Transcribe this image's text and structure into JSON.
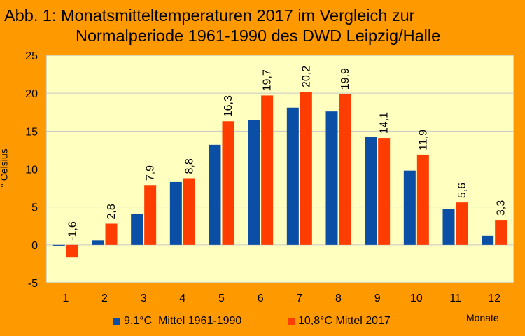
{
  "title_line1": "Abb. 1: Monatsmitteltemperaturen 2017 im Vergleich zur",
  "title_line2": "Normalperiode 1961-1990 des DWD Leipzig/Halle",
  "colors": {
    "series1": "#0a4ea6",
    "series2": "#ff3d00",
    "plot_bg": "#ffffc0",
    "page_bg": "#ff9900"
  },
  "chart_data": {
    "type": "bar",
    "title": "Abb. 1: Monatsmitteltemperaturen 2017 im Vergleich zur Normalperiode 1961-1990 des DWD Leipzig/Halle",
    "xlabel": "Monate",
    "ylabel": "° Celsius",
    "categories": [
      "1",
      "2",
      "3",
      "4",
      "5",
      "6",
      "7",
      "8",
      "9",
      "10",
      "11",
      "12"
    ],
    "ylim": [
      -5,
      25
    ],
    "yticks": [
      "-5",
      "0",
      "5",
      "10",
      "15",
      "20",
      "25"
    ],
    "grid": true,
    "legend": "bottom",
    "series": [
      {
        "name": "9,1°C  Mittel 1961-1990",
        "values": [
          -0.1,
          0.6,
          4.1,
          8.3,
          13.2,
          16.5,
          18.1,
          17.6,
          14.2,
          9.8,
          4.7,
          1.2
        ],
        "labels": []
      },
      {
        "name": "10,8°C Mittel 2017",
        "values": [
          -1.6,
          2.8,
          7.9,
          8.8,
          16.3,
          19.7,
          20.2,
          19.9,
          14.1,
          11.9,
          5.6,
          3.3
        ],
        "labels": [
          "-1,6",
          "2,8",
          "7,9",
          "8,8",
          "16,3",
          "19,7",
          "20,2",
          "19,9",
          "14,1",
          "11,9",
          "5,6",
          "3,3"
        ]
      }
    ]
  }
}
